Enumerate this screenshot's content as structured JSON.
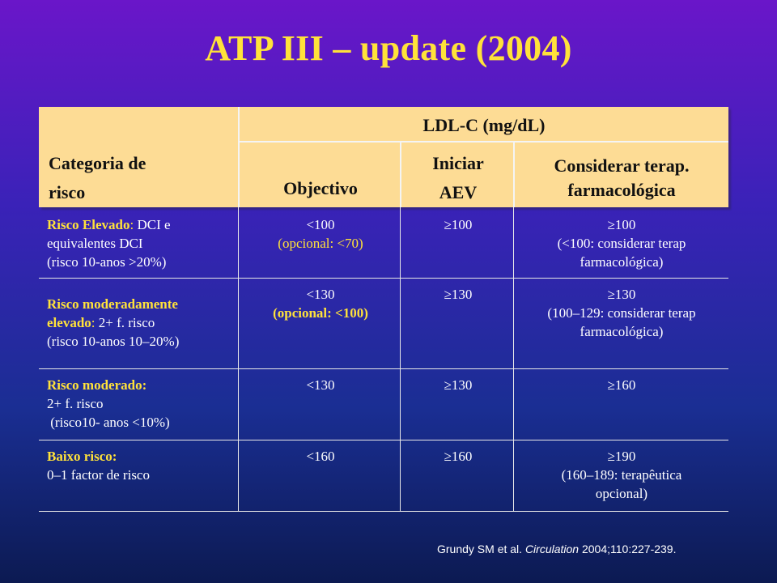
{
  "title": "ATP III – update (2004)",
  "header": {
    "category_line1": "Categoria de",
    "category_line2": "risco",
    "ldl": "LDL-C (mg/dL)",
    "objective": "Objectivo",
    "start_line1": "Iniciar",
    "start_line2": "AEV",
    "consider_line1": "Considerar terap.",
    "consider_line2": "farmacológica"
  },
  "rows": [
    {
      "category_title": "Risco Elevado",
      "category_title_suffix": ":",
      "category_rest": " DCI e",
      "category_l2": "equivalentes DCI",
      "category_l3": "(risco 10-anos >20%)",
      "objective": "<100",
      "objective_opt": "(opcional: <70)",
      "start": "≥100",
      "consider": "≥100",
      "consider_l2": "(<100: considerar terap",
      "consider_l3": "farmacológica)"
    },
    {
      "category_title": "Risco moderadamente",
      "category_l2_title": "elevado",
      "category_l2_suffix": ":",
      "category_l2_rest": "  2+ f. risco",
      "category_l3": "(risco 10-anos 10–20%)",
      "objective": "<130",
      "objective_opt": "(opcional: <100)",
      "start": "≥130",
      "consider": "≥130",
      "consider_l2": "(100–129: considerar terap",
      "consider_l3": "farmacológica)"
    },
    {
      "category_title": "Risco moderado:",
      "category_l2": "2+ f. risco",
      "category_l3": " (risco10- anos <10%)",
      "objective": "<130",
      "start": "≥130",
      "consider": "≥160"
    },
    {
      "category_title": "Baixo risco:",
      "category_l2": "0–1 factor de risco",
      "objective": "<160",
      "start": "≥160",
      "consider": "≥190",
      "consider_l2": "(160–189: terapêutica",
      "consider_l3": "opcional)"
    }
  ],
  "citation": {
    "authors": "Grundy SM et al. ",
    "journal": "Circulation",
    "details": " 2004;110:227-239."
  }
}
